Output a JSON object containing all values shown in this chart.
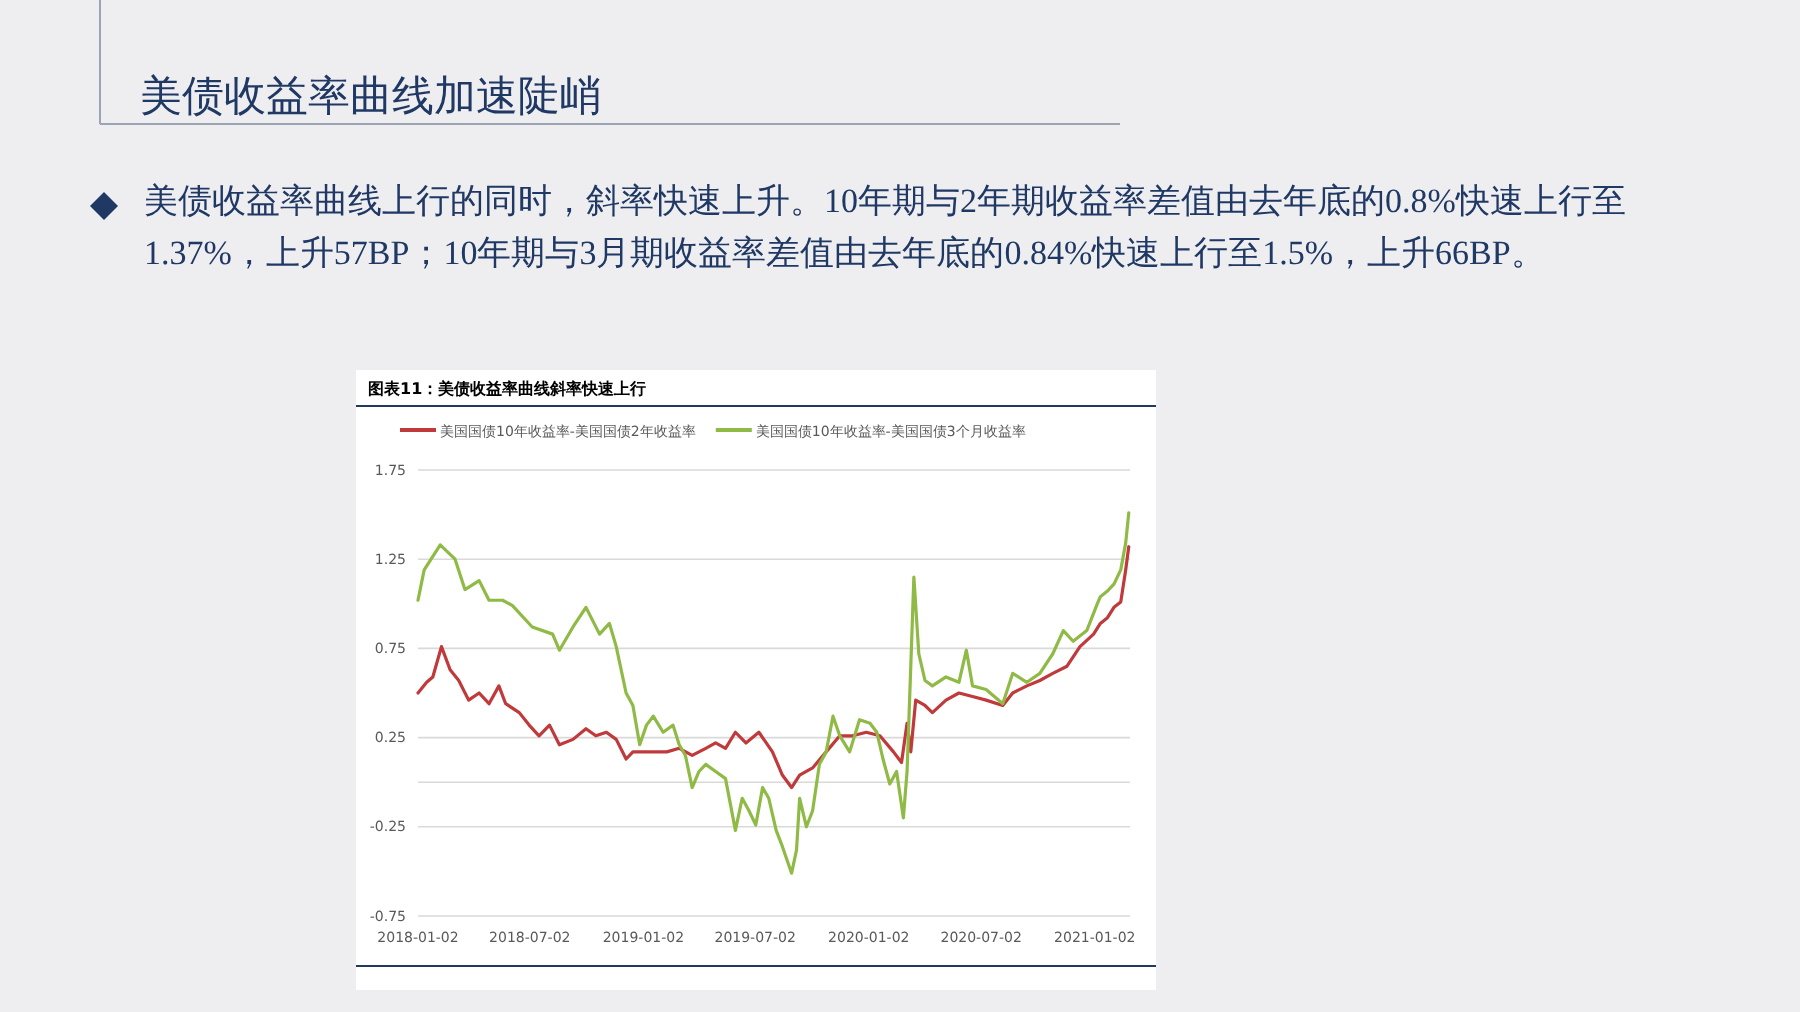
{
  "chart_data": {
    "type": "line",
    "title": "美债收益率曲线加速陡峭",
    "subtitle": "美债收益率曲线上行的同时，斜率快速上升。10年期与2年期收益率差值由去年底的0.8%快速上行至1.37%，上升57BP；10年期与3月期收益率差值由去年底的0.84%快速上行至1.5%，上升66BP。",
    "annotations": [
      "图表11：美债收益率曲线斜率快速上行"
    ],
    "xlim": [
      "2018-01-02",
      "2021-02-28"
    ],
    "xticks": [
      "2018-01-02",
      "2018-07-02",
      "2019-01-02",
      "2019-07-02",
      "2020-01-02",
      "2020-07-02",
      "2021-01-02"
    ],
    "ylim": [
      -0.75,
      1.75
    ],
    "yticks": [
      -0.75,
      -0.25,
      0.25,
      0.75,
      1.25,
      1.75
    ],
    "grid": "y",
    "legend": "top",
    "series": [
      {
        "name": "美国国债10年收益率-美国国债2年收益率",
        "color": "#c0393b",
        "x": [
          "2018-01-02",
          "2018-01-16",
          "2018-01-26",
          "2018-02-09",
          "2018-02-23",
          "2018-03-09",
          "2018-03-25",
          "2018-04-11",
          "2018-04-27",
          "2018-05-13",
          "2018-05-24",
          "2018-06-15",
          "2018-07-01",
          "2018-07-17",
          "2018-08-03",
          "2018-08-19",
          "2018-09-10",
          "2018-10-01",
          "2018-10-17",
          "2018-11-03",
          "2018-11-19",
          "2018-12-05",
          "2018-12-16",
          "2019-01-07",
          "2019-02-09",
          "2019-03-01",
          "2019-03-22",
          "2019-04-13",
          "2019-04-29",
          "2019-05-15",
          "2019-05-31",
          "2019-06-17",
          "2019-07-08",
          "2019-07-30",
          "2019-08-15",
          "2019-08-30",
          "2019-09-12",
          "2019-10-03",
          "2019-10-25",
          "2019-11-16",
          "2019-12-07",
          "2019-12-29",
          "2020-01-20",
          "2020-02-11",
          "2020-02-24",
          "2020-03-04",
          "2020-03-10",
          "2020-03-18",
          "2020-04-02",
          "2020-04-14",
          "2020-05-06",
          "2020-05-27",
          "2020-06-18",
          "2020-07-10",
          "2020-08-06",
          "2020-08-22",
          "2020-09-14",
          "2020-10-05",
          "2020-10-26",
          "2020-11-18",
          "2020-12-09",
          "2020-12-31",
          "2021-01-11",
          "2021-01-22",
          "2021-02-02",
          "2021-02-13",
          "2021-02-21",
          "2021-02-26"
        ],
        "values": [
          0.5,
          0.56,
          0.59,
          0.76,
          0.63,
          0.57,
          0.46,
          0.5,
          0.44,
          0.54,
          0.44,
          0.39,
          0.32,
          0.26,
          0.32,
          0.21,
          0.24,
          0.3,
          0.26,
          0.28,
          0.24,
          0.13,
          0.17,
          0.17,
          0.17,
          0.19,
          0.15,
          0.19,
          0.22,
          0.19,
          0.28,
          0.22,
          0.28,
          0.17,
          0.04,
          -0.03,
          0.04,
          0.08,
          0.17,
          0.26,
          0.26,
          0.28,
          0.26,
          0.17,
          0.11,
          0.33,
          0.17,
          0.46,
          0.43,
          0.39,
          0.46,
          0.5,
          0.48,
          0.46,
          0.43,
          0.5,
          0.54,
          0.57,
          0.61,
          0.65,
          0.76,
          0.83,
          0.89,
          0.92,
          0.98,
          1.01,
          1.19,
          1.32
        ]
      },
      {
        "name": "美国国债10年收益率-美国国债3个月收益率",
        "color": "#8fba45",
        "x": [
          "2018-01-02",
          "2018-01-12",
          "2018-02-07",
          "2018-03-03",
          "2018-03-19",
          "2018-04-11",
          "2018-04-27",
          "2018-05-19",
          "2018-06-04",
          "2018-07-06",
          "2018-08-08",
          "2018-08-19",
          "2018-09-10",
          "2018-10-01",
          "2018-10-23",
          "2018-11-08",
          "2018-11-19",
          "2018-12-05",
          "2018-12-16",
          "2018-12-27",
          "2019-01-07",
          "2019-01-18",
          "2019-02-03",
          "2019-02-19",
          "2019-03-01",
          "2019-03-11",
          "2019-03-22",
          "2019-04-02",
          "2019-04-13",
          "2019-04-29",
          "2019-05-15",
          "2019-05-31",
          "2019-06-11",
          "2019-06-22",
          "2019-07-03",
          "2019-07-14",
          "2019-07-24",
          "2019-08-05",
          "2019-08-15",
          "2019-08-30",
          "2019-09-07",
          "2019-09-12",
          "2019-09-23",
          "2019-10-03",
          "2019-10-14",
          "2019-10-25",
          "2019-11-05",
          "2019-11-16",
          "2019-12-02",
          "2019-12-18",
          "2020-01-04",
          "2020-01-15",
          "2020-01-25",
          "2020-02-05",
          "2020-02-16",
          "2020-02-27",
          "2020-03-04",
          "2020-03-10",
          "2020-03-15",
          "2020-03-23",
          "2020-04-02",
          "2020-04-14",
          "2020-05-06",
          "2020-05-27",
          "2020-06-08",
          "2020-06-18",
          "2020-07-10",
          "2020-08-06",
          "2020-08-22",
          "2020-09-14",
          "2020-10-05",
          "2020-10-26",
          "2020-11-12",
          "2020-11-28",
          "2020-12-20",
          "2021-01-06",
          "2021-01-11",
          "2021-01-22",
          "2021-02-02",
          "2021-02-13",
          "2021-02-21",
          "2021-02-26"
        ],
        "values": [
          1.02,
          1.19,
          1.33,
          1.25,
          1.08,
          1.13,
          1.02,
          1.02,
          0.99,
          0.87,
          0.83,
          0.74,
          0.87,
          0.98,
          0.83,
          0.89,
          0.76,
          0.5,
          0.43,
          0.21,
          0.32,
          0.37,
          0.28,
          0.32,
          0.21,
          0.15,
          -0.03,
          0.06,
          0.1,
          0.06,
          0.02,
          -0.27,
          -0.09,
          -0.16,
          -0.24,
          -0.03,
          -0.09,
          -0.27,
          -0.36,
          -0.51,
          -0.38,
          -0.09,
          -0.25,
          -0.16,
          0.1,
          0.17,
          0.37,
          0.26,
          0.17,
          0.35,
          0.33,
          0.28,
          0.13,
          -0.01,
          0.06,
          -0.2,
          0.06,
          0.65,
          1.15,
          0.72,
          0.57,
          0.54,
          0.59,
          0.56,
          0.74,
          0.54,
          0.52,
          0.44,
          0.61,
          0.56,
          0.61,
          0.72,
          0.85,
          0.79,
          0.85,
          1.0,
          1.04,
          1.07,
          1.11,
          1.19,
          1.34,
          1.51
        ]
      }
    ]
  }
}
